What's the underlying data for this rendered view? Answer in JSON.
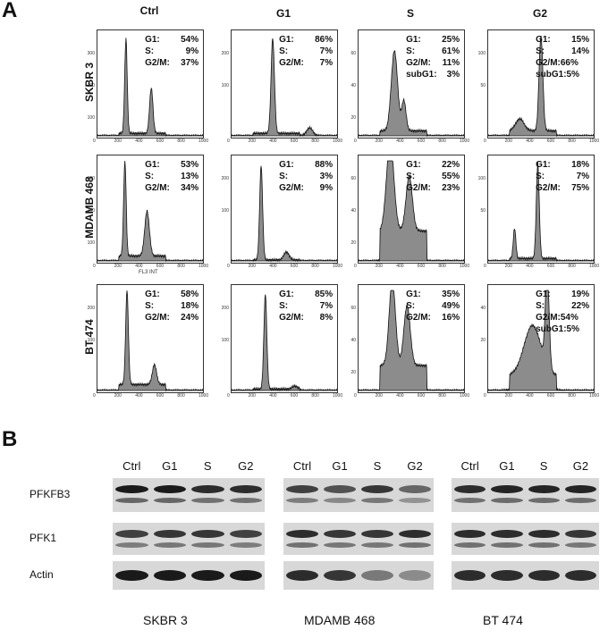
{
  "panelA": {
    "letter": "A",
    "columns": [
      "Ctrl",
      "G1",
      "S",
      "G2"
    ],
    "rows": [
      "SKBR 3",
      "MDAMB 468",
      "BT 474"
    ],
    "xlabel": "FL3 INT",
    "plots": [
      [
        {
          "stats": [
            [
              "G1:",
              "54%"
            ],
            [
              "S:",
              "9%"
            ],
            [
              "G2/M:",
              "37%"
            ]
          ],
          "yticks": [
            "300",
            "200",
            "100"
          ],
          "xticks": [
            "0",
            "200",
            "400",
            "600",
            "800",
            "1000"
          ],
          "peaks": [
            [
              270,
              0.95,
              12
            ],
            [
              510,
              0.45,
              16
            ]
          ],
          "s_level": 0.05
        },
        {
          "stats": [
            [
              "G1:",
              "86%"
            ],
            [
              "S:",
              "7%"
            ],
            [
              "G2/M:",
              "7%"
            ]
          ],
          "yticks": [
            "200",
            "100"
          ],
          "xticks": [
            "0",
            "200",
            "400",
            "600",
            "800",
            "1000"
          ],
          "peaks": [
            [
              390,
              0.95,
              16
            ],
            [
              740,
              0.08,
              30
            ]
          ],
          "s_level": 0.05
        },
        {
          "stats": [
            [
              "G1:",
              "25%"
            ],
            [
              "S:",
              "61%"
            ],
            [
              "G2/M:",
              "11%"
            ],
            [
              "subG1:",
              "3%"
            ]
          ],
          "yticks": [
            "60",
            "40",
            "20"
          ],
          "xticks": [
            "0",
            "200",
            "400",
            "600",
            "800",
            "1000"
          ],
          "peaks": [
            [
              340,
              0.8,
              30
            ],
            [
              430,
              0.3,
              20
            ]
          ],
          "s_level": 0.1
        },
        {
          "stats": [
            [
              "G1:",
              "15%"
            ],
            [
              "S:",
              "14%"
            ],
            [
              "G2/M:66%",
              ""
            ],
            [
              "subG1:5%",
              ""
            ]
          ],
          "yticks": [
            "100",
            "50"
          ],
          "xticks": [
            "0",
            "200",
            "400",
            "600",
            "800",
            "1000"
          ],
          "peaks": [
            [
              500,
              0.95,
              18
            ],
            [
              300,
              0.12,
              40
            ]
          ],
          "s_level": 0.1
        }
      ],
      [
        {
          "stats": [
            [
              "G1:",
              "53%"
            ],
            [
              "S:",
              "13%"
            ],
            [
              "G2/M:",
              "34%"
            ]
          ],
          "yticks": [
            "300",
            "200",
            "100"
          ],
          "xticks": [
            "0",
            "200",
            "400",
            "600",
            "800",
            "1000"
          ],
          "peaks": [
            [
              260,
              0.95,
              12
            ],
            [
              470,
              0.45,
              22
            ]
          ],
          "s_level": 0.1
        },
        {
          "stats": [
            [
              "G1:",
              "88%"
            ],
            [
              "S:",
              "3%"
            ],
            [
              "G2/M:",
              "9%"
            ]
          ],
          "yticks": [
            "200",
            "100"
          ],
          "xticks": [
            "0",
            "200",
            "400",
            "600",
            "800",
            "1000"
          ],
          "peaks": [
            [
              280,
              0.95,
              14
            ],
            [
              520,
              0.08,
              25
            ]
          ],
          "s_level": 0.02
        },
        {
          "stats": [
            [
              "G1:",
              "22%"
            ],
            [
              "S:",
              "55%"
            ],
            [
              "G2/M:",
              "23%"
            ]
          ],
          "yticks": [
            "60",
            "40",
            "20"
          ],
          "xticks": [
            "0",
            "200",
            "400",
            "600",
            "800",
            "1000"
          ],
          "peaks": [
            [
              300,
              0.9,
              35
            ],
            [
              480,
              0.55,
              30
            ]
          ],
          "s_level": 0.6
        },
        {
          "stats": [
            [
              "G1:",
              "18%"
            ],
            [
              "S:",
              "7%"
            ],
            [
              "G2/M:",
              "75%"
            ]
          ],
          "yticks": [
            "100",
            "50"
          ],
          "xticks": [
            "0",
            "200",
            "400",
            "600",
            "800",
            "1000"
          ],
          "peaks": [
            [
              470,
              0.95,
              14
            ],
            [
              250,
              0.3,
              12
            ]
          ],
          "s_level": 0.05
        }
      ],
      [
        {
          "stats": [
            [
              "G1:",
              "58%"
            ],
            [
              "S:",
              "18%"
            ],
            [
              "G2/M:",
              "24%"
            ]
          ],
          "yticks": [
            "200",
            "100"
          ],
          "xticks": [
            "0",
            "200",
            "400",
            "600",
            "800",
            "1000"
          ],
          "peaks": [
            [
              280,
              0.95,
              13
            ],
            [
              540,
              0.2,
              20
            ]
          ],
          "s_level": 0.12
        },
        {
          "stats": [
            [
              "G1:",
              "85%"
            ],
            [
              "S:",
              "7%"
            ],
            [
              "G2/M:",
              "8%"
            ]
          ],
          "yticks": [
            "200",
            "100"
          ],
          "xticks": [
            "0",
            "200",
            "400",
            "600",
            "800",
            "1000"
          ],
          "peaks": [
            [
              320,
              0.95,
              14
            ],
            [
              600,
              0.03,
              25
            ]
          ],
          "s_level": 0.03
        },
        {
          "stats": [
            [
              "G1:",
              "35%"
            ],
            [
              "S:",
              "49%"
            ],
            [
              "G2/M:",
              "16%"
            ]
          ],
          "yticks": [
            "60",
            "40",
            "20"
          ],
          "xticks": [
            "0",
            "200",
            "400",
            "600",
            "800",
            "1000"
          ],
          "peaks": [
            [
              320,
              0.85,
              30
            ],
            [
              460,
              0.6,
              30
            ]
          ],
          "s_level": 0.5
        },
        {
          "stats": [
            [
              "G1:",
              "19%"
            ],
            [
              "S:",
              "22%"
            ],
            [
              "G2/M:54%",
              ""
            ],
            [
              "subG1:5%",
              ""
            ]
          ],
          "yticks": [
            "40",
            "20"
          ],
          "xticks": [
            "0",
            "200",
            "400",
            "600",
            "800",
            "1000"
          ],
          "peaks": [
            [
              560,
              0.95,
              18
            ],
            [
              420,
              0.5,
              80
            ]
          ],
          "s_level": 0.3
        }
      ]
    ]
  },
  "panelB": {
    "letter": "B",
    "lanes": [
      "Ctrl",
      "G1",
      "S",
      "G2"
    ],
    "proteins": [
      "PFKFB3",
      "PFK1",
      "Actin"
    ],
    "cell_lines": [
      "SKBR 3",
      "MDAMB 468",
      "BT 474"
    ],
    "band_intensity": [
      [
        [
          1,
          1,
          0.9,
          0.9
        ],
        [
          0.8,
          0.85,
          0.85,
          0.8
        ],
        [
          1,
          1,
          1,
          1
        ]
      ],
      [
        [
          0.8,
          0.7,
          0.85,
          0.6
        ],
        [
          0.9,
          0.85,
          0.85,
          0.9
        ],
        [
          0.9,
          0.85,
          0.5,
          0.4
        ]
      ],
      [
        [
          0.9,
          0.95,
          0.95,
          0.95
        ],
        [
          0.9,
          0.9,
          0.9,
          0.85
        ],
        [
          0.9,
          0.9,
          0.9,
          0.9
        ]
      ]
    ]
  }
}
